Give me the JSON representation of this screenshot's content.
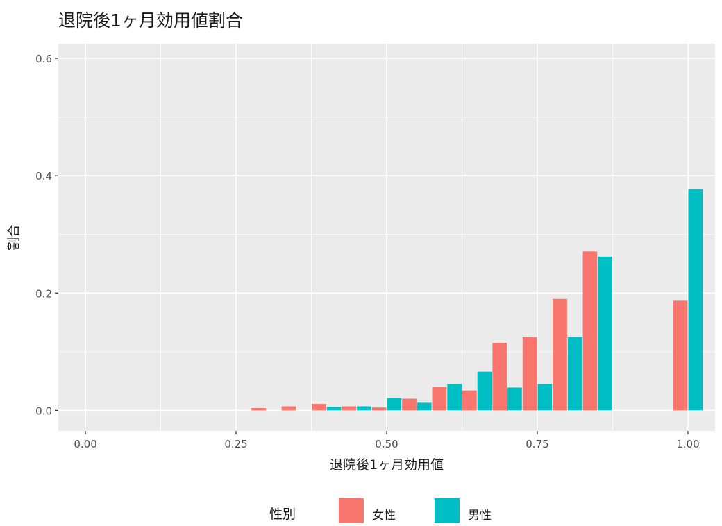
{
  "chart_data": {
    "type": "bar",
    "title": "退院後1ヶ月効用値割合",
    "xlabel": "退院後1ヶ月効用値",
    "ylabel": "割合",
    "xlim": [
      -0.045,
      1.045
    ],
    "ylim": [
      -0.035,
      0.625
    ],
    "x_ticks": [
      0.0,
      0.25,
      0.5,
      0.75,
      1.0
    ],
    "x_tick_labels": [
      "0.00",
      "0.25",
      "0.50",
      "0.75",
      "1.00"
    ],
    "y_ticks": [
      0.0,
      0.2,
      0.4,
      0.6
    ],
    "y_tick_labels": [
      "0.0",
      "0.2",
      "0.4",
      "0.6"
    ],
    "bin_width": 0.05,
    "grid": true,
    "legend_position": "bottom",
    "legend_title": "性別",
    "series": [
      {
        "name": "女性",
        "color": "#F8766D",
        "points": [
          {
            "x": 0.3,
            "y": 0.004
          },
          {
            "x": 0.35,
            "y": 0.007
          },
          {
            "x": 0.4,
            "y": 0.011
          },
          {
            "x": 0.45,
            "y": 0.007
          },
          {
            "x": 0.5,
            "y": 0.005
          },
          {
            "x": 0.55,
            "y": 0.02
          },
          {
            "x": 0.6,
            "y": 0.04
          },
          {
            "x": 0.65,
            "y": 0.034
          },
          {
            "x": 0.7,
            "y": 0.115
          },
          {
            "x": 0.75,
            "y": 0.125
          },
          {
            "x": 0.8,
            "y": 0.19
          },
          {
            "x": 0.85,
            "y": 0.271
          },
          {
            "x": 1.0,
            "y": 0.187
          }
        ]
      },
      {
        "name": "男性",
        "color": "#00BFC4",
        "points": [
          {
            "x": 0.4,
            "y": 0.006
          },
          {
            "x": 0.45,
            "y": 0.007
          },
          {
            "x": 0.5,
            "y": 0.021
          },
          {
            "x": 0.55,
            "y": 0.013
          },
          {
            "x": 0.6,
            "y": 0.045
          },
          {
            "x": 0.65,
            "y": 0.066
          },
          {
            "x": 0.7,
            "y": 0.039
          },
          {
            "x": 0.75,
            "y": 0.045
          },
          {
            "x": 0.8,
            "y": 0.125
          },
          {
            "x": 0.85,
            "y": 0.262
          },
          {
            "x": 1.0,
            "y": 0.377
          }
        ]
      }
    ]
  }
}
